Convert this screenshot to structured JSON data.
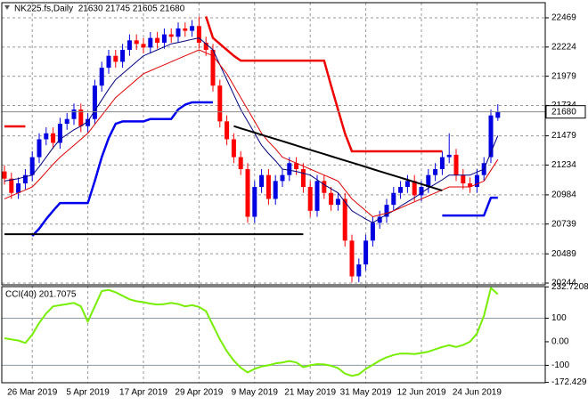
{
  "chart_data": [
    {
      "type": "candlestick",
      "title": "NK225.fs,Daily  21630 21745 21605 21680",
      "categories": [
        null,
        null,
        null,
        null,
        "26 Mar 2019",
        null,
        null,
        null,
        null,
        null,
        null,
        null,
        "5 Apr 2019",
        null,
        null,
        null,
        null,
        null,
        null,
        null,
        "17 Apr 2019",
        null,
        null,
        null,
        null,
        null,
        null,
        null,
        "29 Apr 2019",
        null,
        null,
        null,
        null,
        null,
        null,
        null,
        "9 May 2019",
        null,
        null,
        null,
        null,
        null,
        null,
        null,
        "21 May 2019",
        null,
        null,
        null,
        null,
        null,
        null,
        null,
        "31 May 2019",
        null,
        null,
        null,
        null,
        null,
        null,
        null,
        "12 Jun 2019",
        null,
        null,
        null,
        null,
        null,
        null,
        null,
        "24 Jun 2019",
        null,
        null,
        null
      ],
      "open": [
        21180,
        21120,
        21000,
        21080,
        21150,
        21300,
        21450,
        21500,
        21420,
        21580,
        21620,
        21700,
        21560,
        21620,
        21900,
        22050,
        22150,
        22100,
        22200,
        22280,
        22250,
        22220,
        22300,
        22260,
        22330,
        22310,
        22380,
        22360,
        22400,
        22260,
        22200,
        21900,
        21600,
        21450,
        21300,
        21200,
        20800,
        21050,
        21150,
        20950,
        21100,
        21150,
        21250,
        21200,
        21050,
        20850,
        21100,
        21000,
        20900,
        20950,
        20600,
        20300,
        20400,
        20600,
        20750,
        20800,
        20900,
        21000,
        21050,
        21100,
        20980,
        21050,
        21150,
        21200,
        21300,
        21320,
        21150,
        21080,
        21050,
        21150,
        21300,
        21630
      ],
      "high": [
        21230,
        21170,
        21130,
        21200,
        21350,
        21500,
        21550,
        21550,
        21630,
        21670,
        21750,
        21750,
        21670,
        21950,
        22100,
        22200,
        22200,
        22250,
        22330,
        22330,
        22300,
        22350,
        22350,
        22380,
        22380,
        22430,
        22430,
        22450,
        22480,
        22310,
        22250,
        21950,
        21650,
        21500,
        21350,
        21250,
        21100,
        21200,
        21200,
        21150,
        21200,
        21300,
        21300,
        21250,
        21100,
        21150,
        21150,
        21050,
        21000,
        21000,
        20650,
        20450,
        20650,
        20800,
        20850,
        20950,
        21050,
        21100,
        21150,
        21150,
        21100,
        21200,
        21250,
        21350,
        21500,
        21370,
        21200,
        21130,
        21200,
        21300,
        21700,
        21745
      ],
      "low": [
        21070,
        20950,
        20950,
        21030,
        21100,
        21250,
        21400,
        21370,
        21370,
        21530,
        21570,
        21510,
        21510,
        21570,
        21850,
        22000,
        22050,
        22050,
        22150,
        22200,
        22170,
        22170,
        22210,
        22210,
        22260,
        22260,
        22310,
        22310,
        22210,
        22150,
        21850,
        21550,
        21400,
        21250,
        21150,
        20750,
        20750,
        21000,
        20900,
        20900,
        21050,
        21100,
        21150,
        21000,
        20800,
        20800,
        20950,
        20850,
        20850,
        20550,
        20250,
        20250,
        20350,
        20550,
        20700,
        20750,
        20850,
        20950,
        21000,
        20930,
        20930,
        21000,
        21100,
        21150,
        21250,
        21100,
        21030,
        21000,
        21000,
        21100,
        21250,
        21605
      ],
      "close": [
        21120,
        21000,
        21080,
        21150,
        21300,
        21450,
        21500,
        21420,
        21580,
        21620,
        21700,
        21560,
        21620,
        21900,
        22050,
        22150,
        22100,
        22200,
        22280,
        22250,
        22220,
        22300,
        22260,
        22330,
        22310,
        22380,
        22360,
        22400,
        22260,
        22200,
        21900,
        21600,
        21450,
        21300,
        21200,
        20800,
        21050,
        21150,
        20950,
        21100,
        21150,
        21250,
        21200,
        21050,
        20850,
        21100,
        21000,
        20900,
        20950,
        20600,
        20300,
        20400,
        20600,
        20750,
        20800,
        20900,
        21000,
        21050,
        21100,
        20980,
        21050,
        21150,
        21200,
        21300,
        21320,
        21150,
        21080,
        21050,
        21150,
        21250,
        21650,
        21680
      ],
      "up_color": "#0000e0",
      "down_color": "#ff0000",
      "series": [
        {
          "color": "#000080",
          "width": 1,
          "values": [
            21100,
            21110,
            21120,
            21135,
            21150,
            21220,
            21300,
            21380,
            21450,
            21490,
            21530,
            21560,
            21600,
            21690,
            21780,
            21870,
            21950,
            22000,
            22050,
            22100,
            22150,
            22175,
            22200,
            22225,
            22250,
            22262,
            22275,
            22288,
            22300,
            22250,
            22200,
            22075,
            21950,
            21825,
            21700,
            21600,
            21500,
            21400,
            21330,
            21270,
            21200,
            21190,
            21180,
            21165,
            21150,
            21110,
            21070,
            21035,
            21000,
            20925,
            20850,
            20815,
            20780,
            20750,
            20785,
            20820,
            20850,
            20890,
            20925,
            20960,
            21000,
            21040,
            21075,
            21110,
            21150,
            21150,
            21150,
            21150,
            21175,
            21200,
            21340,
            21480
          ]
        },
        {
          "color": "#e00000",
          "width": 1,
          "values": [
            20950,
            20975,
            21000,
            21025,
            21050,
            21110,
            21175,
            21240,
            21300,
            21350,
            21400,
            21450,
            21500,
            21575,
            21650,
            21725,
            21800,
            21850,
            21900,
            21950,
            22000,
            22025,
            22050,
            22075,
            22100,
            22125,
            22150,
            22175,
            22200,
            22175,
            22150,
            22075,
            22000,
            21900,
            21800,
            21700,
            21600,
            21500,
            21430,
            21370,
            21300,
            21275,
            21250,
            21225,
            21200,
            21175,
            21150,
            21125,
            21100,
            21025,
            20950,
            20900,
            20850,
            20800,
            20815,
            20830,
            20850,
            20875,
            20900,
            20925,
            20950,
            20975,
            21000,
            21025,
            21050,
            21050,
            21050,
            21050,
            21075,
            21100,
            21190,
            21280
          ]
        },
        {
          "color": "#ee0000",
          "width": 2.5,
          "values": [
            21558,
            21558,
            21558,
            21558,
            null,
            null,
            null,
            null,
            null,
            null,
            null,
            null,
            null,
            null,
            null,
            null,
            null,
            null,
            null,
            null,
            null,
            null,
            null,
            null,
            null,
            null,
            null,
            null,
            null,
            22480,
            22300,
            22250,
            22200,
            22150,
            22110,
            22110,
            22110,
            22110,
            22110,
            22110,
            22110,
            22110,
            22110,
            22110,
            22110,
            22110,
            22110,
            21900,
            21700,
            21500,
            21349,
            21349,
            21349,
            21349,
            21349,
            21349,
            21349,
            21349,
            21349,
            21349,
            21349,
            21349,
            21349,
            21349,
            null,
            null,
            null,
            null,
            null,
            null,
            null,
            null
          ]
        },
        {
          "color": "#0000ee",
          "width": 2.5,
          "values": [
            null,
            null,
            null,
            null,
            20639,
            20700,
            20780,
            20850,
            20915,
            20915,
            20915,
            20915,
            20915,
            21100,
            21300,
            21460,
            21580,
            21600,
            21600,
            21600,
            21600,
            21620,
            21620,
            21620,
            21620,
            21700,
            21740,
            21760,
            21760,
            21760,
            21760,
            null,
            null,
            null,
            null,
            null,
            null,
            null,
            null,
            null,
            null,
            null,
            null,
            null,
            null,
            null,
            null,
            null,
            null,
            null,
            null,
            null,
            null,
            null,
            null,
            null,
            null,
            null,
            null,
            null,
            null,
            null,
            null,
            20811,
            20811,
            20811,
            20811,
            20811,
            20811,
            20811,
            20960,
            20960
          ]
        },
        {
          "color": "#000000",
          "width": 2,
          "values": [
            20654,
            20654,
            20654,
            20654,
            20654,
            20654,
            20654,
            20654,
            20654,
            20654,
            20654,
            20654,
            20654,
            20654,
            20654,
            20654,
            20654,
            20654,
            20654,
            20654,
            20654,
            20654,
            20654,
            20654,
            20654,
            20654,
            20654,
            20654,
            20654,
            20654,
            20654,
            20654,
            20654,
            20654,
            20654,
            20654,
            20654,
            20654,
            20654,
            20654,
            20654,
            20654,
            20654,
            20654,
            null,
            null,
            null,
            null,
            null,
            null,
            null,
            null,
            null,
            null,
            null,
            null,
            null,
            null,
            null,
            null,
            null,
            null,
            null,
            null,
            null,
            null,
            null,
            null,
            null,
            null,
            null,
            null
          ]
        },
        {
          "color": "#000000",
          "width": 2,
          "values": [
            null,
            null,
            null,
            null,
            null,
            null,
            null,
            null,
            null,
            null,
            null,
            null,
            null,
            null,
            null,
            null,
            null,
            null,
            null,
            null,
            null,
            null,
            null,
            null,
            null,
            null,
            null,
            null,
            null,
            null,
            null,
            null,
            null,
            21560,
            21542,
            21524,
            21506,
            21488,
            21470,
            21452,
            21434,
            21416,
            21398,
            21380,
            21362,
            21344,
            21326,
            21308,
            21290,
            21272,
            21254,
            21236,
            21218,
            21200,
            21182,
            21164,
            21146,
            21128,
            21110,
            21092,
            21074,
            21056,
            21038,
            21020,
            null,
            null,
            null,
            null,
            null,
            null,
            null,
            null
          ]
        }
      ],
      "last_price": 21680,
      "ylim": [
        20229,
        22596
      ],
      "yticks": [
        22469,
        22224,
        21979,
        21734,
        21479,
        21234,
        20984,
        20739,
        20489,
        20244
      ],
      "grid": true
    },
    {
      "type": "line",
      "title": "CCI(40) 201.7075",
      "color": "#77ee00",
      "values": [
        15,
        10,
        5,
        -5,
        30,
        80,
        120,
        150,
        155,
        160,
        165,
        150,
        85,
        150,
        215,
        220,
        210,
        195,
        180,
        172,
        168,
        162,
        158,
        160,
        165,
        160,
        150,
        155,
        148,
        130,
        70,
        10,
        -40,
        -80,
        -110,
        -130,
        -115,
        -105,
        -100,
        -92,
        -88,
        -82,
        -88,
        -108,
        -100,
        -95,
        -96,
        -102,
        -112,
        -135,
        -145,
        -138,
        -115,
        -98,
        -80,
        -66,
        -56,
        -50,
        -50,
        -52,
        -48,
        -42,
        -32,
        -22,
        -15,
        -22,
        -14,
        0,
        35,
        110,
        228,
        201.7075
      ],
      "ylim": [
        -174,
        234
      ],
      "yticks": [
        232.7208,
        100,
        {
          "value": 0,
          "label": "0.00"
        },
        -100,
        -172.429
      ],
      "levels": [
        100,
        -100
      ]
    }
  ]
}
